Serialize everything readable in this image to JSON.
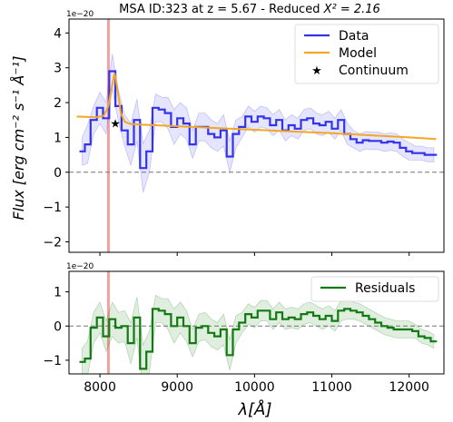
{
  "chart_data": [
    {
      "type": "line",
      "title": "MSA ID:323 at z = 5.67 - Reduced",
      "title_math": "X² = 2.16",
      "ylabel": "Flux [erg cm⁻² s⁻¹ Å⁻¹]",
      "scale_label": "1e−20",
      "xlim": [
        7600,
        12450
      ],
      "ylim": [
        -2.3,
        4.4
      ],
      "yticks": [
        -2,
        -1,
        0,
        1,
        2,
        3,
        4
      ],
      "ytick_labels": [
        "−2",
        "−1",
        "0",
        "1",
        "2",
        "3",
        "4"
      ],
      "zero_line": true,
      "vline_x": 8110,
      "legend_position": "top-right",
      "legend": [
        "Data",
        "Model",
        "Continuum"
      ],
      "series": [
        {
          "name": "Data",
          "color": "#3333ee",
          "drawstyle": "steps-mid",
          "x": [
            7770,
            7840,
            7920,
            8000,
            8080,
            8160,
            8240,
            8320,
            8400,
            8480,
            8560,
            8640,
            8720,
            8800,
            8880,
            8960,
            9040,
            9120,
            9200,
            9280,
            9360,
            9440,
            9520,
            9600,
            9680,
            9760,
            9840,
            9920,
            10000,
            10080,
            10160,
            10240,
            10320,
            10400,
            10480,
            10560,
            10640,
            10720,
            10800,
            10880,
            10960,
            11040,
            11120,
            11200,
            11280,
            11360,
            11440,
            11520,
            11600,
            11680,
            11760,
            11840,
            11920,
            12000,
            12080,
            12160,
            12240,
            12320
          ],
          "y": [
            0.6,
            0.8,
            1.5,
            1.85,
            1.55,
            2.9,
            1.9,
            1.2,
            0.8,
            1.5,
            0.12,
            0.6,
            1.85,
            1.8,
            1.7,
            1.3,
            1.55,
            1.4,
            0.8,
            1.3,
            1.3,
            1.1,
            1.0,
            1.2,
            0.45,
            1.1,
            1.3,
            1.6,
            1.45,
            1.6,
            1.55,
            1.35,
            1.5,
            1.2,
            1.35,
            1.25,
            1.5,
            1.55,
            1.4,
            1.35,
            1.45,
            1.25,
            1.5,
            1.1,
            0.95,
            0.85,
            0.92,
            0.9,
            0.9,
            0.85,
            0.88,
            0.85,
            0.7,
            0.6,
            0.55,
            0.55,
            0.5,
            0.5
          ],
          "err": [
            0.4,
            0.55,
            0.4,
            0.45,
            0.45,
            0.5,
            0.45,
            0.45,
            0.6,
            0.6,
            0.7,
            0.6,
            0.4,
            0.35,
            0.45,
            0.5,
            0.45,
            0.45,
            0.4,
            0.4,
            0.4,
            0.4,
            0.4,
            0.45,
            0.45,
            0.4,
            0.3,
            0.3,
            0.3,
            0.3,
            0.3,
            0.3,
            0.3,
            0.3,
            0.3,
            0.3,
            0.3,
            0.3,
            0.3,
            0.3,
            0.3,
            0.3,
            0.3,
            0.3,
            0.25,
            0.25,
            0.25,
            0.25,
            0.25,
            0.25,
            0.25,
            0.25,
            0.25,
            0.25,
            0.2,
            0.2,
            0.2,
            0.2
          ]
        },
        {
          "name": "Model",
          "color": "#f5a623",
          "drawstyle": "line",
          "x": [
            7700,
            7950,
            8050,
            8110,
            8150,
            8190,
            8230,
            8270,
            8320,
            8400,
            9000,
            10000,
            11000,
            12000,
            12350
          ],
          "y": [
            1.6,
            1.58,
            1.62,
            1.9,
            2.4,
            2.85,
            2.35,
            1.7,
            1.45,
            1.38,
            1.32,
            1.22,
            1.12,
            1.0,
            0.95
          ]
        }
      ],
      "continuum": {
        "name": "Continuum",
        "x": 8200,
        "y": 1.42
      }
    },
    {
      "type": "line",
      "scale_label": "1e−20",
      "xlabel": "λ[Å]",
      "xlim": [
        7600,
        12450
      ],
      "ylim": [
        -1.4,
        1.6
      ],
      "xticks": [
        8000,
        9000,
        10000,
        11000,
        12000
      ],
      "xtick_labels": [
        "8000",
        "9000",
        "10000",
        "11000",
        "12000"
      ],
      "yticks": [
        -1,
        0,
        1
      ],
      "ytick_labels": [
        "−1",
        "0",
        "1"
      ],
      "zero_line": true,
      "vline_x": 8110,
      "legend_position": "top-right",
      "legend": [
        "Residuals"
      ],
      "series": [
        {
          "name": "Residuals",
          "color": "#117a11",
          "drawstyle": "steps-mid",
          "x": [
            7770,
            7840,
            7920,
            8000,
            8080,
            8160,
            8240,
            8320,
            8400,
            8480,
            8560,
            8640,
            8720,
            8800,
            8880,
            8960,
            9040,
            9120,
            9200,
            9280,
            9360,
            9440,
            9520,
            9600,
            9680,
            9760,
            9840,
            9920,
            10000,
            10080,
            10160,
            10240,
            10320,
            10400,
            10480,
            10560,
            10640,
            10720,
            10800,
            10880,
            10960,
            11040,
            11120,
            11200,
            11280,
            11360,
            11440,
            11520,
            11600,
            11680,
            11760,
            11840,
            11920,
            12000,
            12080,
            12160,
            12240,
            12320
          ],
          "y": [
            -1.05,
            -0.95,
            -0.05,
            0.25,
            -0.3,
            0.2,
            -0.05,
            0.0,
            -0.5,
            0.25,
            -1.25,
            -0.75,
            0.5,
            0.45,
            0.35,
            0.0,
            0.25,
            0.0,
            -0.5,
            -0.05,
            0.0,
            -0.2,
            -0.3,
            -0.1,
            -0.85,
            -0.1,
            0.1,
            0.35,
            0.25,
            0.45,
            0.45,
            0.2,
            0.4,
            0.2,
            0.25,
            0.2,
            0.35,
            0.4,
            0.3,
            0.2,
            0.3,
            0.15,
            0.45,
            0.5,
            0.45,
            0.4,
            0.3,
            0.2,
            0.1,
            0.0,
            -0.05,
            -0.1,
            -0.1,
            -0.1,
            -0.15,
            -0.3,
            -0.35,
            -0.45
          ],
          "err": [
            0.4,
            0.5,
            0.45,
            0.45,
            0.45,
            0.5,
            0.45,
            0.45,
            0.6,
            0.6,
            0.7,
            0.6,
            0.4,
            0.35,
            0.45,
            0.5,
            0.45,
            0.45,
            0.4,
            0.4,
            0.4,
            0.4,
            0.4,
            0.45,
            0.45,
            0.4,
            0.3,
            0.3,
            0.3,
            0.3,
            0.3,
            0.3,
            0.3,
            0.3,
            0.3,
            0.3,
            0.3,
            0.3,
            0.3,
            0.3,
            0.3,
            0.3,
            0.3,
            0.3,
            0.25,
            0.25,
            0.25,
            0.25,
            0.25,
            0.25,
            0.25,
            0.25,
            0.25,
            0.25,
            0.2,
            0.2,
            0.2,
            0.2
          ]
        }
      ]
    }
  ]
}
